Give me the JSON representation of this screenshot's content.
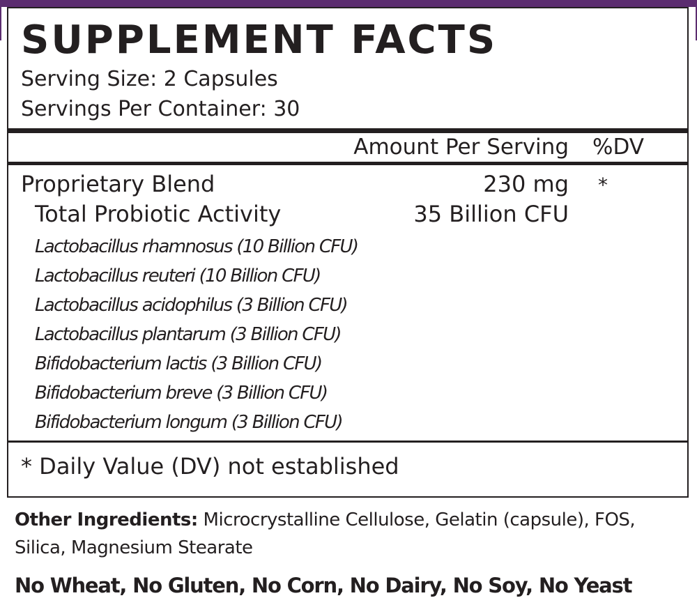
{
  "brand": {
    "accent_color": "#5b2c6f"
  },
  "title": "SUPPLEMENT FACTS",
  "serving_size": "Serving Size: 2 Capsules",
  "servings_per_container": "Servings Per Container:  30",
  "header": {
    "amount_per_serving": "Amount Per Serving",
    "dv": "%DV"
  },
  "blend": {
    "name": "Proprietary Blend",
    "amount": "230 mg",
    "dv": "*"
  },
  "probiotic": {
    "name": "Total Probiotic Activity",
    "amount": "35 Billion CFU"
  },
  "strains": [
    "Lactobacillus rhamnosus (10 Billion CFU)",
    "Lactobacillus reuteri (10 Billion CFU)",
    "Lactobacillus acidophilus (3 Billion CFU)",
    "Lactobacillus plantarum (3 Billion CFU)",
    "Bifidobacterium lactis (3 Billion CFU)",
    "Bifidobacterium breve (3 Billion CFU)",
    "Bifidobacterium longum (3 Billion CFU)"
  ],
  "footnote": "* Daily Value (DV) not established",
  "other_ingredients": {
    "label": "Other Ingredients:",
    "text": " Microcrystalline Cellulose, Gelatin (capsule), FOS, Silica, Magnesium Stearate"
  },
  "free_from": "No Wheat, No Gluten, No Corn, No Dairy, No Soy, No Yeast"
}
